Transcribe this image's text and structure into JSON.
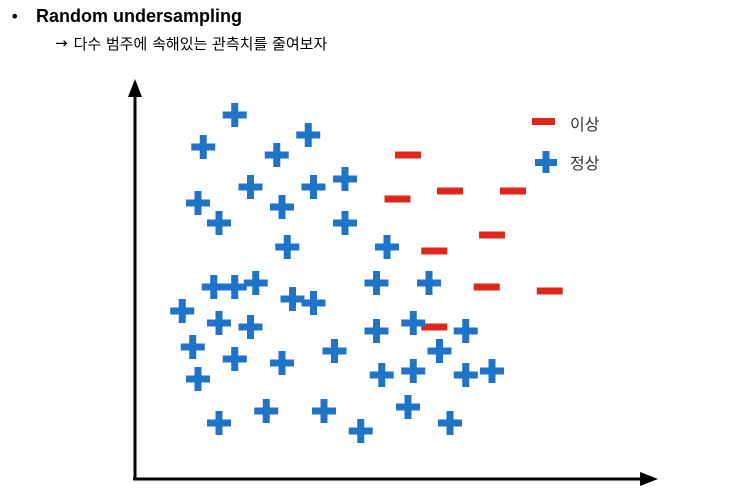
{
  "header": {
    "bullet": "•",
    "title": "Random undersampling",
    "arrow": "→",
    "subtitle": "다수 범주에 속해있는 관측치를 줄여보자"
  },
  "legend": {
    "anomaly_label": "이상",
    "normal_label": "정상"
  },
  "colors": {
    "normal": "#1f73c8",
    "anomaly": "#e0251b",
    "axis": "#000000"
  },
  "chart_data": {
    "type": "scatter",
    "title": "",
    "xlabel": "",
    "ylabel": "",
    "xlim": [
      0,
      100
    ],
    "ylim": [
      0,
      100
    ],
    "series": [
      {
        "name": "이상",
        "marker": "minus",
        "points": [
          [
            52,
            81
          ],
          [
            50,
            70
          ],
          [
            60,
            72
          ],
          [
            72,
            72
          ],
          [
            68,
            61
          ],
          [
            57,
            57
          ],
          [
            67,
            48
          ],
          [
            79,
            47
          ],
          [
            57,
            38
          ]
        ]
      },
      {
        "name": "정상",
        "marker": "plus",
        "points": [
          [
            19,
            91
          ],
          [
            13,
            83
          ],
          [
            27,
            81
          ],
          [
            33,
            86
          ],
          [
            12,
            69
          ],
          [
            22,
            73
          ],
          [
            28,
            68
          ],
          [
            34,
            73
          ],
          [
            40,
            75
          ],
          [
            16,
            64
          ],
          [
            29,
            58
          ],
          [
            40,
            64
          ],
          [
            48,
            58
          ],
          [
            23,
            49
          ],
          [
            15,
            48
          ],
          [
            19,
            48
          ],
          [
            30,
            45
          ],
          [
            34,
            44
          ],
          [
            46,
            49
          ],
          [
            56,
            49
          ],
          [
            9,
            42
          ],
          [
            16,
            39
          ],
          [
            22,
            38
          ],
          [
            46,
            37
          ],
          [
            53,
            39
          ],
          [
            11,
            33
          ],
          [
            19,
            30
          ],
          [
            28,
            29
          ],
          [
            38,
            32
          ],
          [
            58,
            32
          ],
          [
            63,
            37
          ],
          [
            12,
            25
          ],
          [
            47,
            26
          ],
          [
            53,
            27
          ],
          [
            63,
            26
          ],
          [
            68,
            27
          ],
          [
            16,
            14
          ],
          [
            25,
            17
          ],
          [
            36,
            17
          ],
          [
            43,
            12
          ],
          [
            52,
            18
          ],
          [
            60,
            14
          ]
        ]
      }
    ]
  }
}
